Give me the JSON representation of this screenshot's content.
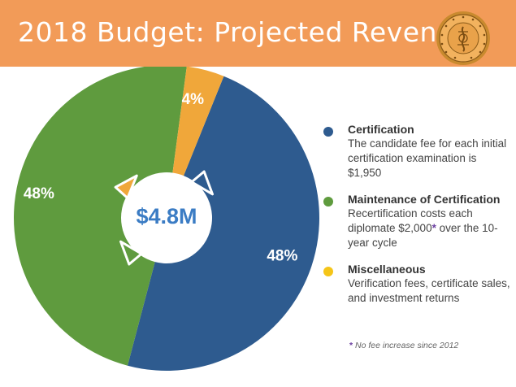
{
  "header": {
    "title": "2018 Budget: Projected Revenue",
    "colors": {
      "background": "#f29b58",
      "text": "#ffffff"
    }
  },
  "seal": {
    "icon": "seal-logo-icon",
    "lettering": "AMERICAN BOARD OF OPHTHALMOLOGY"
  },
  "chart_data": {
    "type": "pie",
    "donut": true,
    "center_label": "$4.8M",
    "slices": [
      {
        "label": "Certification",
        "value": 48,
        "display": "48%",
        "color": "#2e5b8f"
      },
      {
        "label": "Maintenance of Certification",
        "value": 48,
        "display": "48%",
        "color": "#5f9b3e"
      },
      {
        "label": "Miscellaneous",
        "value": 4,
        "display": "4%",
        "color": "#f0a73a"
      }
    ],
    "legend_placement": "right"
  },
  "legend": [
    {
      "title": "Certification",
      "desc": "The candidate fee for each initial certification examination is $1,950",
      "color": "#2e5b8f"
    },
    {
      "title": "Maintenance of Certification",
      "desc_before": "Recertification costs each diplomate $2,000",
      "star": "*",
      "desc_after": " over the 10-year cycle",
      "color": "#5f9b3e"
    },
    {
      "title": "Miscellaneous",
      "desc": "Verification fees, certificate sales, and investment returns",
      "color": "#f5c518"
    }
  ],
  "footnote": {
    "star": "*",
    "text": " No fee increase since 2012"
  }
}
